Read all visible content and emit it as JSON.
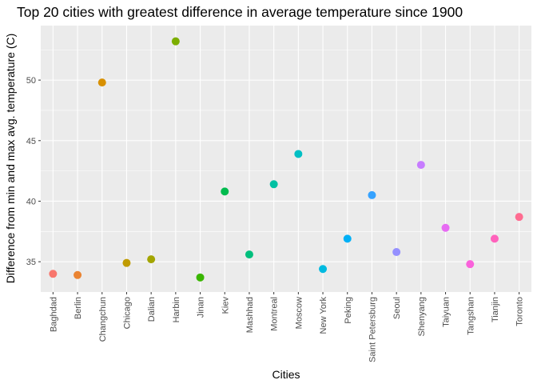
{
  "chart_data": {
    "type": "scatter",
    "title": "Top 20 cities with greatest difference in average temperature since 1900",
    "xlabel": "Cities",
    "ylabel": "Difference from min and max avg. temperature (C)",
    "ylim": [
      32.5,
      54.5
    ],
    "yticks": [
      35,
      40,
      45,
      50
    ],
    "grid": true,
    "legend": "none",
    "categories": [
      "Baghdad",
      "Berlin",
      "Changchun",
      "Chicago",
      "Dalian",
      "Harbin",
      "Jinan",
      "Kiev",
      "Mashhad",
      "Montreal",
      "Moscow",
      "New York",
      "Peking",
      "Saint Petersburg",
      "Seoul",
      "Shenyang",
      "Taiyuan",
      "Tangshan",
      "Tianjin",
      "Toronto"
    ],
    "values": [
      34.0,
      33.9,
      49.8,
      34.9,
      35.2,
      53.2,
      33.7,
      40.8,
      35.6,
      41.4,
      43.9,
      34.4,
      36.9,
      40.5,
      35.8,
      43.0,
      37.8,
      34.8,
      36.9,
      38.7
    ],
    "colors": [
      "#F8766D",
      "#EA8331",
      "#D89000",
      "#C09B00",
      "#A3A500",
      "#7CAE00",
      "#39B600",
      "#00BB4E",
      "#00BF7D",
      "#00C1A3",
      "#00BFC4",
      "#00BAE0",
      "#00B0F6",
      "#35A2FF",
      "#9590FF",
      "#C77CFF",
      "#E76BF3",
      "#FA62DB",
      "#FF62BC",
      "#FF6C91"
    ]
  }
}
